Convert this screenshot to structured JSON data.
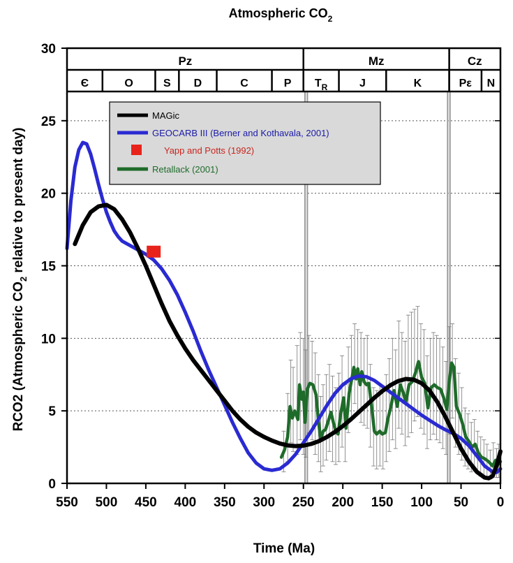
{
  "chart_data": {
    "type": "line",
    "title": "Atmospheric CO",
    "title_sub": "2",
    "xlabel": "Time (Ma)",
    "ylabel": "RCO2 (Atmospheric CO",
    "ylabel_sub": "2",
    "ylabel_tail": " relative to present day)",
    "x_reversed": true,
    "xlim": [
      550,
      0
    ],
    "ylim": [
      0,
      30
    ],
    "xticks": [
      550,
      500,
      450,
      400,
      350,
      300,
      250,
      200,
      150,
      100,
      50,
      0
    ],
    "yticks": [
      0,
      5,
      10,
      15,
      20,
      25,
      30
    ],
    "grid": "horizontal dotted",
    "legend_position": "top-left",
    "eras": [
      {
        "label": "Pz",
        "start": 550,
        "end": 250
      },
      {
        "label": "Mz",
        "start": 250,
        "end": 65
      },
      {
        "label": "Cz",
        "start": 65,
        "end": 0
      }
    ],
    "periods": [
      {
        "label": "Є",
        "start": 550,
        "end": 505
      },
      {
        "label": "O",
        "start": 505,
        "end": 438
      },
      {
        "label": "S",
        "start": 438,
        "end": 408
      },
      {
        "label": "D",
        "start": 408,
        "end": 360
      },
      {
        "label": "C",
        "start": 360,
        "end": 290
      },
      {
        "label": "P",
        "start": 290,
        "end": 250
      },
      {
        "label": "T",
        "label_sub": "R",
        "start": 250,
        "end": 205
      },
      {
        "label": "J",
        "start": 205,
        "end": 145
      },
      {
        "label": "K",
        "start": 145,
        "end": 65
      },
      {
        "label": "Pε",
        "start": 65,
        "end": 24
      },
      {
        "label": "N",
        "start": 24,
        "end": 0
      }
    ],
    "boundary_lines": [
      248,
      245,
      67,
      64
    ],
    "series": [
      {
        "name": "MAGic",
        "color": "#000000",
        "points": [
          [
            540,
            16.5
          ],
          [
            530,
            17.8
          ],
          [
            520,
            18.7
          ],
          [
            510,
            19.1
          ],
          [
            500,
            19.2
          ],
          [
            490,
            18.9
          ],
          [
            480,
            18.2
          ],
          [
            470,
            17.3
          ],
          [
            460,
            16.2
          ],
          [
            450,
            15.0
          ],
          [
            440,
            13.7
          ],
          [
            430,
            12.4
          ],
          [
            420,
            11.2
          ],
          [
            410,
            10.2
          ],
          [
            400,
            9.3
          ],
          [
            390,
            8.5
          ],
          [
            380,
            7.8
          ],
          [
            370,
            7.1
          ],
          [
            360,
            6.4
          ],
          [
            350,
            5.7
          ],
          [
            340,
            5.0
          ],
          [
            330,
            4.4
          ],
          [
            320,
            3.9
          ],
          [
            310,
            3.5
          ],
          [
            300,
            3.2
          ],
          [
            290,
            2.95
          ],
          [
            280,
            2.75
          ],
          [
            270,
            2.62
          ],
          [
            260,
            2.57
          ],
          [
            250,
            2.6
          ],
          [
            240,
            2.72
          ],
          [
            230,
            2.92
          ],
          [
            220,
            3.2
          ],
          [
            210,
            3.55
          ],
          [
            200,
            3.95
          ],
          [
            190,
            4.4
          ],
          [
            180,
            4.9
          ],
          [
            170,
            5.4
          ],
          [
            160,
            5.9
          ],
          [
            150,
            6.35
          ],
          [
            140,
            6.75
          ],
          [
            130,
            7.05
          ],
          [
            120,
            7.2
          ],
          [
            110,
            7.15
          ],
          [
            100,
            6.9
          ],
          [
            90,
            6.4
          ],
          [
            80,
            5.6
          ],
          [
            70,
            4.6
          ],
          [
            60,
            3.5
          ],
          [
            50,
            2.4
          ],
          [
            40,
            1.5
          ],
          [
            30,
            0.8
          ],
          [
            20,
            0.4
          ],
          [
            15,
            0.35
          ],
          [
            10,
            0.5
          ],
          [
            5,
            1.2
          ],
          [
            0,
            2.2
          ]
        ]
      },
      {
        "name": "GEOCARB III (Berner and Kothavala, 2001)",
        "color": "#2a2ad2",
        "points": [
          [
            550,
            16.2
          ],
          [
            545,
            19.5
          ],
          [
            540,
            21.8
          ],
          [
            535,
            23.0
          ],
          [
            530,
            23.5
          ],
          [
            525,
            23.4
          ],
          [
            520,
            22.7
          ],
          [
            515,
            21.7
          ],
          [
            510,
            20.6
          ],
          [
            505,
            19.6
          ],
          [
            500,
            18.7
          ],
          [
            495,
            18.0
          ],
          [
            490,
            17.4
          ],
          [
            485,
            17.0
          ],
          [
            480,
            16.7
          ],
          [
            470,
            16.4
          ],
          [
            460,
            16.1
          ],
          [
            450,
            15.8
          ],
          [
            440,
            15.4
          ],
          [
            430,
            14.8
          ],
          [
            420,
            14.0
          ],
          [
            410,
            13.0
          ],
          [
            400,
            11.8
          ],
          [
            390,
            10.5
          ],
          [
            380,
            9.1
          ],
          [
            370,
            7.8
          ],
          [
            360,
            6.6
          ],
          [
            350,
            5.4
          ],
          [
            340,
            4.2
          ],
          [
            330,
            3.1
          ],
          [
            320,
            2.1
          ],
          [
            310,
            1.4
          ],
          [
            300,
            1.0
          ],
          [
            290,
            0.9
          ],
          [
            280,
            1.0
          ],
          [
            270,
            1.4
          ],
          [
            260,
            2.0
          ],
          [
            250,
            2.8
          ],
          [
            240,
            3.6
          ],
          [
            230,
            4.5
          ],
          [
            220,
            5.4
          ],
          [
            210,
            6.2
          ],
          [
            200,
            6.8
          ],
          [
            190,
            7.2
          ],
          [
            180,
            7.4
          ],
          [
            170,
            7.35
          ],
          [
            160,
            7.1
          ],
          [
            150,
            6.7
          ],
          [
            140,
            6.3
          ],
          [
            130,
            5.9
          ],
          [
            120,
            5.5
          ],
          [
            110,
            5.1
          ],
          [
            100,
            4.7
          ],
          [
            90,
            4.35
          ],
          [
            80,
            4.0
          ],
          [
            70,
            3.7
          ],
          [
            60,
            3.45
          ],
          [
            50,
            3.1
          ],
          [
            40,
            2.6
          ],
          [
            30,
            1.9
          ],
          [
            20,
            1.2
          ],
          [
            10,
            0.8
          ],
          [
            5,
            0.75
          ],
          [
            0,
            1.0
          ]
        ]
      },
      {
        "name": "Yapp and Potts (1992)",
        "color": "#e8231c",
        "marker": "square",
        "points": [
          [
            440,
            16.0
          ]
        ]
      },
      {
        "name": "Retallack (2001)",
        "color": "#1e6b2a",
        "points": [
          [
            278,
            1.8
          ],
          [
            274,
            2.3
          ],
          [
            270,
            3.2
          ],
          [
            267,
            5.3
          ],
          [
            264,
            4.5
          ],
          [
            261,
            5.0
          ],
          [
            257,
            4.4
          ],
          [
            255,
            6.8
          ],
          [
            252,
            5.8
          ],
          [
            250,
            6.3
          ],
          [
            248,
            4.2
          ],
          [
            245,
            6.5
          ],
          [
            242,
            6.9
          ],
          [
            238,
            6.8
          ],
          [
            234,
            6.1
          ],
          [
            231,
            4.3
          ],
          [
            228,
            3.0
          ],
          [
            225,
            3.6
          ],
          [
            222,
            3.7
          ],
          [
            219,
            4.2
          ],
          [
            215,
            4.9
          ],
          [
            212,
            4.2
          ],
          [
            209,
            3.6
          ],
          [
            206,
            3.4
          ],
          [
            203,
            4.7
          ],
          [
            199,
            5.9
          ],
          [
            196,
            3.8
          ],
          [
            192,
            6.2
          ],
          [
            189,
            7.1
          ],
          [
            186,
            8.0
          ],
          [
            183,
            7.2
          ],
          [
            181,
            7.9
          ],
          [
            178,
            6.8
          ],
          [
            176,
            7.7
          ],
          [
            173,
            7.0
          ],
          [
            170,
            6.8
          ],
          [
            167,
            6.9
          ],
          [
            163,
            5.1
          ],
          [
            160,
            3.6
          ],
          [
            157,
            3.4
          ],
          [
            153,
            3.6
          ],
          [
            150,
            3.4
          ],
          [
            146,
            3.5
          ],
          [
            143,
            4.4
          ],
          [
            139,
            5.3
          ],
          [
            135,
            6.4
          ],
          [
            131,
            5.3
          ],
          [
            127,
            6.8
          ],
          [
            123,
            6.2
          ],
          [
            120,
            5.6
          ],
          [
            116,
            6.8
          ],
          [
            112,
            7.0
          ],
          [
            108,
            7.6
          ],
          [
            104,
            8.4
          ],
          [
            100,
            7.3
          ],
          [
            96,
            6.9
          ],
          [
            92,
            5.2
          ],
          [
            88,
            6.6
          ],
          [
            84,
            6.8
          ],
          [
            80,
            6.6
          ],
          [
            76,
            6.5
          ],
          [
            72,
            5.9
          ],
          [
            68,
            5.1
          ],
          [
            65,
            7.0
          ],
          [
            62,
            8.3
          ],
          [
            59,
            8.0
          ],
          [
            56,
            5.3
          ],
          [
            52,
            4.8
          ],
          [
            48,
            4.1
          ],
          [
            44,
            3.2
          ],
          [
            40,
            2.9
          ],
          [
            36,
            2.5
          ],
          [
            32,
            2.7
          ],
          [
            28,
            2.1
          ],
          [
            24,
            1.8
          ],
          [
            20,
            1.7
          ],
          [
            15,
            1.5
          ],
          [
            10,
            1.2
          ],
          [
            6,
            1.6
          ],
          [
            3,
            1.3
          ],
          [
            0,
            1.5
          ]
        ],
        "error_bars": [
          [
            275,
            0.8,
            3.6
          ],
          [
            270,
            1.5,
            6.2
          ],
          [
            266,
            2.8,
            8.5
          ],
          [
            263,
            2.2,
            8.0
          ],
          [
            258,
            2.0,
            9.5
          ],
          [
            254,
            3.0,
            10.4
          ],
          [
            250,
            2.0,
            10.0
          ],
          [
            247,
            1.8,
            9.2
          ],
          [
            243,
            3.5,
            10.2
          ],
          [
            239,
            3.0,
            9.8
          ],
          [
            235,
            2.0,
            9.0
          ],
          [
            231,
            1.5,
            7.5
          ],
          [
            228,
            0.8,
            6.0
          ],
          [
            225,
            1.2,
            6.8
          ],
          [
            221,
            1.6,
            7.5
          ],
          [
            217,
            2.2,
            8.2
          ],
          [
            213,
            1.5,
            7.4
          ],
          [
            209,
            1.3,
            6.6
          ],
          [
            205,
            1.5,
            7.6
          ],
          [
            201,
            2.5,
            8.8
          ],
          [
            197,
            1.5,
            6.8
          ],
          [
            193,
            3.5,
            9.4
          ],
          [
            189,
            4.5,
            10.2
          ],
          [
            185,
            5.5,
            11.0
          ],
          [
            181,
            4.8,
            10.6
          ],
          [
            177,
            4.2,
            10.4
          ],
          [
            173,
            4.0,
            10.0
          ],
          [
            169,
            3.8,
            10.2
          ],
          [
            165,
            2.5,
            8.2
          ],
          [
            161,
            1.2,
            6.6
          ],
          [
            157,
            1.0,
            6.4
          ],
          [
            153,
            1.2,
            6.8
          ],
          [
            149,
            1.0,
            6.5
          ],
          [
            145,
            1.5,
            7.5
          ],
          [
            141,
            2.2,
            8.6
          ],
          [
            137,
            3.0,
            10.0
          ],
          [
            133,
            2.4,
            9.2
          ],
          [
            129,
            3.8,
            11.2
          ],
          [
            125,
            3.4,
            10.4
          ],
          [
            121,
            2.6,
            9.8
          ],
          [
            117,
            3.2,
            11.6
          ],
          [
            113,
            3.5,
            11.8
          ],
          [
            109,
            4.3,
            12.0
          ],
          [
            105,
            4.6,
            12.2
          ],
          [
            101,
            3.8,
            11.0
          ],
          [
            97,
            3.4,
            10.6
          ],
          [
            93,
            2.4,
            8.8
          ],
          [
            89,
            3.0,
            10.0
          ],
          [
            85,
            3.4,
            10.4
          ],
          [
            81,
            3.0,
            10.2
          ],
          [
            77,
            2.8,
            10.0
          ],
          [
            73,
            2.4,
            9.4
          ],
          [
            69,
            2.0,
            8.4
          ],
          [
            65,
            3.4,
            10.8
          ],
          [
            61,
            4.5,
            11.0
          ],
          [
            57,
            2.5,
            8.6
          ],
          [
            53,
            2.0,
            7.6
          ],
          [
            49,
            1.6,
            6.6
          ],
          [
            45,
            1.2,
            5.2
          ],
          [
            41,
            1.0,
            4.8
          ],
          [
            37,
            0.8,
            4.2
          ],
          [
            33,
            0.9,
            4.4
          ],
          [
            29,
            0.7,
            3.6
          ],
          [
            25,
            0.5,
            3.2
          ],
          [
            21,
            0.5,
            3.0
          ],
          [
            17,
            0.4,
            2.7
          ],
          [
            13,
            0.3,
            2.3
          ],
          [
            9,
            0.5,
            2.8
          ],
          [
            5,
            0.4,
            2.4
          ],
          [
            2,
            0.4,
            2.7
          ]
        ]
      }
    ]
  }
}
